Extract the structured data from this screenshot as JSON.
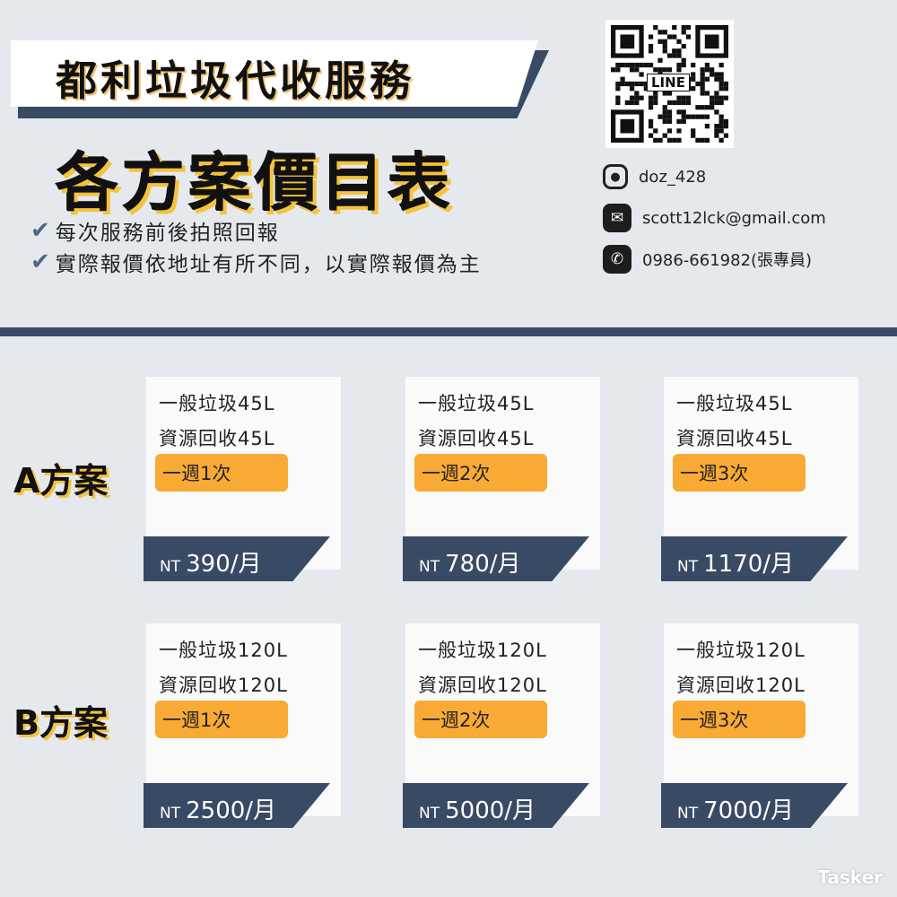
{
  "header": {
    "title": "都利垃圾代收服務",
    "subtitle": "各方案價目表",
    "bullets": [
      "每次服務前後拍照回報",
      "實際報價依地址有所不同，以實際報價為主"
    ],
    "check_icon": "✔"
  },
  "qr": {
    "label": "LINE"
  },
  "contacts": [
    {
      "icon": "instagram-icon",
      "text": "doz_428"
    },
    {
      "icon": "email-icon",
      "text": "scott12lck@gmail.com"
    },
    {
      "icon": "whatsapp-icon",
      "text": "0986-661982(張專員)"
    }
  ],
  "plans": [
    {
      "label": "A方案",
      "cards": [
        {
          "general": "一般垃圾45L",
          "recycle": "資源回收45L",
          "frequency": "一週1次",
          "currency": "NT",
          "price": "390/月"
        },
        {
          "general": "一般垃圾45L",
          "recycle": "資源回收45L",
          "frequency": "一週2次",
          "currency": "NT",
          "price": "780/月"
        },
        {
          "general": "一般垃圾45L",
          "recycle": "資源回收45L",
          "frequency": "一週3次",
          "currency": "NT",
          "price": "1170/月"
        }
      ]
    },
    {
      "label": "B方案",
      "cards": [
        {
          "general": "一般垃圾120L",
          "recycle": "資源回收120L",
          "frequency": "一週1次",
          "currency": "NT",
          "price": "2500/月"
        },
        {
          "general": "一般垃圾120L",
          "recycle": "資源回收120L",
          "frequency": "一週2次",
          "currency": "NT",
          "price": "5000/月"
        },
        {
          "general": "一般垃圾120L",
          "recycle": "資源回收120L",
          "frequency": "一週3次",
          "currency": "NT",
          "price": "7000/月"
        }
      ]
    }
  ],
  "watermark": "Tasker",
  "colors": {
    "navy": "#394a64",
    "orange": "#f9aa35",
    "yellow": "#f5c23c",
    "background": "#e5e9ed"
  }
}
